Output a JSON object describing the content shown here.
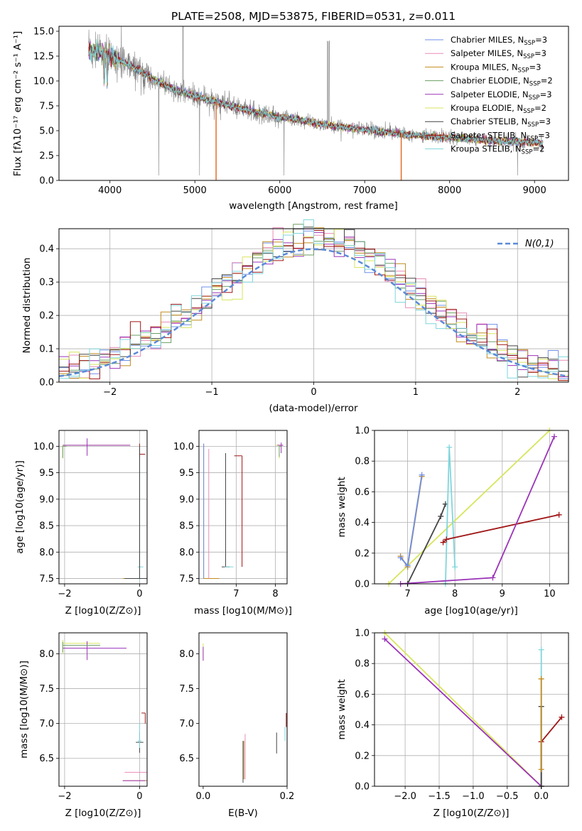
{
  "colors": {
    "Chabrier MILES": "#6f8fe8",
    "Salpeter MILES": "#e88cb8",
    "Kroupa MILES": "#c28b1e",
    "Chabrier ELODIE": "#6a9e63",
    "Salpeter ELODIE": "#9b33b8",
    "Kroupa ELODIE": "#d7e55c",
    "Chabrier STELIB": "#454545",
    "Salpeter STELIB": "#a01616",
    "Kroupa STELIB": "#7fd6dc",
    "data": "#808080",
    "spike": "#e0641e",
    "gauss": "#5a8ad8"
  },
  "chart_data": [
    {
      "id": "spectrum",
      "type": "line",
      "title": "PLATE=2508, MJD=53875, FIBERID=0531, z=0.011",
      "xlabel": "wavelength [Angstrom, rest frame]",
      "ylabel": "Flux [fλ10⁻¹⁷ erg cm⁻² s⁻¹ A⁻¹]",
      "xlim": [
        3400,
        9400
      ],
      "ylim": [
        0,
        15.5
      ],
      "xticks": [
        4000,
        5000,
        6000,
        7000,
        8000,
        9000
      ],
      "yticks": [
        0.0,
        2.5,
        5.0,
        7.5,
        10.0,
        12.5,
        15.0
      ],
      "xtick_labels": [
        "4000",
        "5000",
        "6000",
        "7000",
        "8000",
        "9000"
      ],
      "ytick_labels": [
        "0.0",
        "2.5",
        "5.0",
        "7.5",
        "10.0",
        "12.5",
        "15.0"
      ],
      "legend": [
        "Chabrier MILES, N_SSP=3",
        "Salpeter MILES, N_SSP=3",
        "Kroupa MILES, N_SSP=3",
        "Chabrier ELODIE, N_SSP=2",
        "Salpeter ELODIE, N_SSP=3",
        "Kroupa ELODIE, N_SSP=2",
        "Chabrier STELIB, N_SSP=3",
        "Salpeter STELIB, N_SSP=3",
        "Kroupa STELIB, N_SSP=2"
      ],
      "legend_position": "upper-right",
      "continuum": [
        [
          3750,
          13.0
        ],
        [
          3900,
          12.8
        ],
        [
          4050,
          12.3
        ],
        [
          4300,
          11.3
        ],
        [
          4500,
          10.2
        ],
        [
          4800,
          9.0
        ],
        [
          5000,
          8.5
        ],
        [
          5300,
          7.8
        ],
        [
          5600,
          7.1
        ],
        [
          6000,
          6.4
        ],
        [
          6300,
          6.0
        ],
        [
          6500,
          5.6
        ],
        [
          7000,
          5.1
        ],
        [
          7500,
          4.6
        ],
        [
          8000,
          4.3
        ],
        [
          8500,
          4.0
        ],
        [
          9000,
          3.8
        ],
        [
          9100,
          3.7
        ]
      ],
      "model_x_range": [
        3750,
        9100
      ],
      "data_x_range": [
        3750,
        9100
      ],
      "spikes": [
        [
          5250,
          0
        ],
        [
          7430,
          0
        ]
      ]
    },
    {
      "id": "residuals",
      "type": "histogram",
      "xlabel": "(data-model)/error",
      "ylabel": "Normed distribution",
      "xlim": [
        -2.5,
        2.5
      ],
      "ylim": [
        0,
        0.46
      ],
      "xticks": [
        -2,
        -1,
        0,
        1,
        2
      ],
      "yticks": [
        0.0,
        0.1,
        0.2,
        0.3,
        0.4
      ],
      "xtick_labels": [
        "−2",
        "−1",
        "0",
        "1",
        "2"
      ],
      "ytick_labels": [
        "0.0",
        "0.1",
        "0.2",
        "0.3",
        "0.4"
      ],
      "legend": [
        "N(0,1)"
      ],
      "legend_position": "upper-right",
      "bin_width": 0.1
    },
    {
      "id": "age_vs_Z",
      "type": "scatter",
      "xlabel": "Z [log10(Z/Z⊙)]",
      "ylabel": "age  [log10(age/yr)]",
      "xlim": [
        -2.15,
        0.2
      ],
      "ylim": [
        7.4,
        10.3
      ],
      "xticks": [
        -2,
        0
      ],
      "yticks": [
        7.5,
        8.0,
        8.5,
        9.0,
        9.5,
        10.0
      ],
      "xtick_labels": [
        "−2",
        "0"
      ],
      "ytick_labels": [
        "7.5",
        "8.0",
        "8.5",
        "9.0",
        "9.5",
        "10.0"
      ]
    },
    {
      "id": "age_vs_mass",
      "type": "scatter",
      "xlabel": "mass [log10(M/M⊙)]",
      "ylabel": "",
      "xlim": [
        6.05,
        8.3
      ],
      "ylim": [
        7.4,
        10.3
      ],
      "xticks": [
        7,
        8
      ],
      "yticks": [
        7.5,
        8.0,
        8.5,
        9.0,
        9.5,
        10.0
      ],
      "xtick_labels": [
        "7",
        "8"
      ],
      "ytick_labels": [
        "7.5",
        "8.0",
        "8.5",
        "9.0",
        "9.5",
        "10.0"
      ]
    },
    {
      "id": "weight_vs_age",
      "type": "line",
      "xlabel": "age  [log10(age/yr)]",
      "ylabel": "mass weight",
      "xlim": [
        6.3,
        10.4
      ],
      "ylim": [
        0,
        1.0
      ],
      "xticks": [
        7,
        8,
        9,
        10
      ],
      "yticks": [
        0.0,
        0.2,
        0.4,
        0.6,
        0.8,
        1.0
      ],
      "xtick_labels": [
        "7",
        "8",
        "9",
        "10"
      ],
      "ytick_labels": [
        "0.0",
        "0.2",
        "0.4",
        "0.6",
        "0.8",
        "1.0"
      ],
      "series": [
        {
          "name": "Kroupa ELODIE",
          "x": [
            6.6,
            10.0
          ],
          "y": [
            0.0,
            1.0
          ]
        },
        {
          "name": "Kroupa MILES",
          "x": [
            6.85,
            7.0,
            7.3
          ],
          "y": [
            0.18,
            0.11,
            0.7
          ]
        },
        {
          "name": "Chabrier MILES",
          "x": [
            6.85,
            7.0,
            7.3
          ],
          "y": [
            0.17,
            0.12,
            0.71
          ]
        },
        {
          "name": "Chabrier STELIB",
          "x": [
            7.0,
            7.7,
            7.8
          ],
          "y": [
            0.0,
            0.44,
            0.52
          ]
        },
        {
          "name": "Kroupa STELIB",
          "x": [
            7.8,
            7.88,
            8.0
          ],
          "y": [
            0.0,
            0.89,
            0.11
          ]
        },
        {
          "name": "Salpeter STELIB",
          "x": [
            7.75,
            7.82,
            10.2
          ],
          "y": [
            0.27,
            0.29,
            0.45
          ]
        },
        {
          "name": "Salpeter ELODIE",
          "x": [
            6.85,
            8.8,
            10.1
          ],
          "y": [
            0.0,
            0.04,
            0.96
          ]
        }
      ]
    },
    {
      "id": "mass_vs_Z",
      "type": "scatter",
      "xlabel": "Z [log10(Z/Z⊙)]",
      "ylabel": "mass [log10(M/M⊙)]",
      "xlim": [
        -2.15,
        0.2
      ],
      "ylim": [
        6.1,
        8.3
      ],
      "xticks": [
        -2,
        0
      ],
      "yticks": [
        6.5,
        7.0,
        7.5,
        8.0
      ],
      "xtick_labels": [
        "−2",
        "0"
      ],
      "ytick_labels": [
        "6.5",
        "7.0",
        "7.5",
        "8.0"
      ]
    },
    {
      "id": "mass_vs_EBV",
      "type": "scatter",
      "xlabel": "E(B-V)",
      "ylabel": "",
      "xlim": [
        -0.01,
        0.2
      ],
      "ylim": [
        6.1,
        8.3
      ],
      "xticks": [
        0.0,
        0.2
      ],
      "yticks": [
        6.5,
        7.0,
        7.5,
        8.0
      ],
      "xtick_labels": [
        "0.0",
        "0.2"
      ],
      "ytick_labels": [
        "6.5",
        "7.0",
        "7.5",
        "8.0"
      ]
    },
    {
      "id": "weight_vs_Z",
      "type": "line",
      "xlabel": "Z [log10(Z/Z⊙)]",
      "ylabel": "mass weight",
      "xlim": [
        -2.45,
        0.4
      ],
      "ylim": [
        0,
        1.0
      ],
      "xticks": [
        -2.0,
        -1.5,
        -1.0,
        -0.5,
        0.0
      ],
      "yticks": [
        0.0,
        0.2,
        0.4,
        0.6,
        0.8,
        1.0
      ],
      "xtick_labels": [
        "−2.0",
        "−1.5",
        "−1.0",
        "−0.5",
        "0.0"
      ],
      "ytick_labels": [
        "0.0",
        "0.2",
        "0.4",
        "0.6",
        "0.8",
        "1.0"
      ],
      "series": [
        {
          "name": "Kroupa ELODIE",
          "x": [
            -2.3,
            0.0
          ],
          "y": [
            1.0,
            0.0
          ]
        },
        {
          "name": "Salpeter ELODIE",
          "x": [
            -2.3,
            0.0
          ],
          "y": [
            0.96,
            0.0
          ]
        },
        {
          "name": "Salpeter STELIB",
          "x": [
            0.0,
            0.0,
            0.3
          ],
          "y": [
            0.0,
            0.29,
            0.45
          ]
        },
        {
          "name": "Kroupa STELIB",
          "x": [
            0.0,
            0.0
          ],
          "y": [
            0.0,
            0.89
          ]
        },
        {
          "name": "Chabrier STELIB",
          "x": [
            0.0,
            0.0
          ],
          "y": [
            0.0,
            0.52
          ]
        },
        {
          "name": "Kroupa MILES",
          "x": [
            0.0,
            0.0
          ],
          "y": [
            0.11,
            0.7
          ]
        }
      ]
    }
  ]
}
